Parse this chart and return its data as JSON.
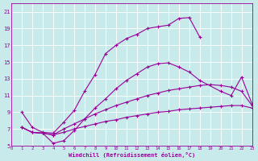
{
  "xlabel": "Windchill (Refroidissement éolien,°C)",
  "background_color": "#c8eaea",
  "grid_color": "#ffffff",
  "line_color": "#990099",
  "xlim": [
    0,
    23
  ],
  "ylim": [
    5,
    22
  ],
  "xticks": [
    0,
    1,
    2,
    3,
    4,
    5,
    6,
    7,
    8,
    9,
    10,
    11,
    12,
    13,
    14,
    15,
    16,
    17,
    18,
    19,
    20,
    21,
    22,
    23
  ],
  "yticks": [
    5,
    7,
    9,
    11,
    13,
    15,
    17,
    19,
    21
  ],
  "line1_x": [
    1,
    2,
    3,
    4,
    5,
    6,
    7,
    8,
    9,
    10,
    11,
    12,
    13,
    14,
    15,
    16,
    17,
    18
  ],
  "line1_y": [
    9.0,
    7.2,
    6.6,
    6.5,
    7.8,
    9.2,
    11.5,
    13.5,
    16.0,
    17.0,
    17.8,
    18.3,
    19.0,
    19.2,
    19.4,
    20.2,
    20.3,
    18.0
  ],
  "line2_x": [
    1,
    2,
    3,
    4,
    5,
    6,
    7,
    8,
    9,
    10,
    11,
    12,
    13,
    14,
    15,
    16,
    17,
    18,
    20,
    21,
    22,
    23
  ],
  "line2_y": [
    7.2,
    6.6,
    6.5,
    5.3,
    5.6,
    6.8,
    8.2,
    9.5,
    10.6,
    11.8,
    12.8,
    13.6,
    14.4,
    14.8,
    14.9,
    14.4,
    13.8,
    12.8,
    11.5,
    11.0,
    13.2,
    10.0
  ],
  "line3_x": [
    1,
    2,
    3,
    4,
    5,
    6,
    7,
    8,
    9,
    10,
    11,
    12,
    13,
    14,
    15,
    16,
    17,
    18,
    19,
    20,
    21,
    22,
    23
  ],
  "line3_y": [
    7.2,
    6.6,
    6.5,
    6.3,
    7.0,
    7.6,
    8.2,
    8.8,
    9.3,
    9.8,
    10.2,
    10.6,
    11.0,
    11.3,
    11.6,
    11.8,
    12.0,
    12.2,
    12.3,
    12.2,
    12.0,
    11.5,
    9.8
  ],
  "line4_x": [
    1,
    2,
    3,
    4,
    5,
    6,
    7,
    8,
    9,
    10,
    11,
    12,
    13,
    14,
    15,
    16,
    17,
    18,
    19,
    20,
    21,
    22,
    23
  ],
  "line4_y": [
    7.2,
    6.6,
    6.5,
    6.3,
    6.6,
    7.0,
    7.3,
    7.6,
    7.9,
    8.1,
    8.4,
    8.6,
    8.8,
    9.0,
    9.1,
    9.3,
    9.4,
    9.5,
    9.6,
    9.7,
    9.8,
    9.8,
    9.5
  ]
}
